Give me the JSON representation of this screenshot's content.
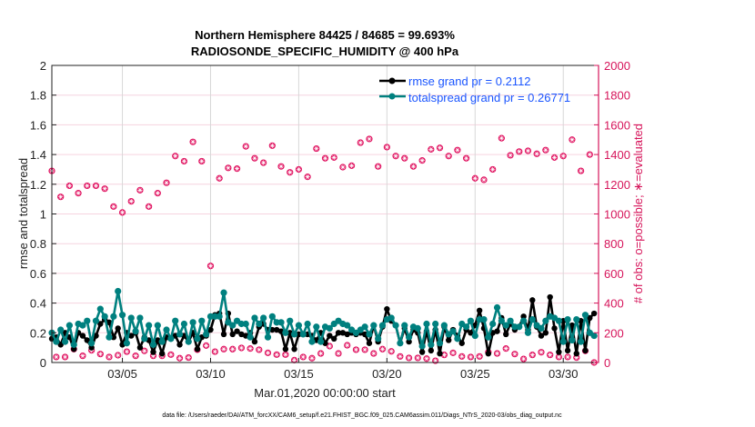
{
  "chart_data": {
    "type": "line",
    "title": [
      "Northern Hemisphere 84425 / 84685 = 99.693%",
      "RADIOSONDE_SPECIFIC_HUMIDITY @ 400 hPa"
    ],
    "xlabel": "Mar.01,2020 00:00:00 start",
    "ylabel": "rmse and totalspread",
    "ylabel_right": "# of obs: o=possible; ∗=evaluated",
    "footer": "data file: /Users/raeder/DAI/ATM_forcXX/CAM6_setup/f.e21.FHIST_BGC.f09_025.CAM6assim.011/Diags_NTrS_2020-03/obs_diag_output.nc",
    "x_range_days": [
      1,
      32
    ],
    "x_step_days": 0.25,
    "x_ticks": [
      {
        "day": 5,
        "label": "03/05"
      },
      {
        "day": 10,
        "label": "03/10"
      },
      {
        "day": 15,
        "label": "03/15"
      },
      {
        "day": 20,
        "label": "03/20"
      },
      {
        "day": 25,
        "label": "03/25"
      },
      {
        "day": 30,
        "label": "03/30"
      }
    ],
    "ylim": [
      0,
      2
    ],
    "y_ticks": [
      "0",
      "0.2",
      "0.4",
      "0.6",
      "0.8",
      "1",
      "1.2",
      "1.4",
      "1.6",
      "1.8",
      "2"
    ],
    "ylim_right": [
      0,
      2000
    ],
    "y_ticks_right": [
      "0",
      "200",
      "400",
      "600",
      "800",
      "1000",
      "1200",
      "1400",
      "1600",
      "1800",
      "2000"
    ],
    "grid": true,
    "legend_placement": "top-right",
    "colors": {
      "rmse": "#000000",
      "spread": "#00807f",
      "obs": "#e0115f",
      "right_axis": "#d6145a",
      "legend_text": "#1a55ff",
      "hgrid": "#f6d3df",
      "vgrid": "#d8d8d8"
    },
    "series": [
      {
        "name": "rmse grand pr = 0.2112",
        "key": "rmse",
        "values": [
          0.16,
          0.17,
          0.12,
          0.2,
          0.17,
          0.09,
          0.2,
          0.18,
          0.15,
          0.1,
          0.18,
          0.26,
          0.29,
          0.27,
          0.17,
          0.23,
          0.12,
          0.2,
          0.18,
          0.2,
          0.1,
          0.17,
          0.15,
          0.07,
          0.15,
          0.06,
          0.17,
          0.16,
          0.18,
          0.12,
          0.18,
          0.14,
          0.2,
          0.09,
          0.17,
          0.18,
          0.22,
          0.32,
          0.33,
          0.19,
          0.33,
          0.19,
          0.21,
          0.19,
          0.18,
          0.2,
          0.14,
          0.24,
          0.26,
          0.22,
          0.22,
          0.22,
          0.21,
          0.09,
          0.2,
          0.09,
          0.19,
          0.19,
          0.19,
          0.18,
          0.15,
          0.2,
          0.13,
          0.18,
          0.16,
          0.2,
          0.2,
          0.19,
          0.2,
          0.19,
          0.2,
          0.19,
          0.13,
          0.25,
          0.14,
          0.24,
          0.36,
          0.28,
          0.25,
          0.13,
          0.23,
          0.14,
          0.22,
          0.2,
          0.07,
          0.21,
          0.08,
          0.22,
          0.06,
          0.24,
          0.15,
          0.22,
          0.18,
          0.13,
          0.22,
          0.2,
          0.25,
          0.35,
          0.23,
          0.06,
          0.2,
          0.21,
          0.3,
          0.19,
          0.26,
          0.22,
          0.24,
          0.31,
          0.22,
          0.42,
          0.24,
          0.18,
          0.2,
          0.44,
          0.23,
          0.07,
          0.28,
          0.08,
          0.25,
          0.06,
          0.28,
          0.08,
          0.3,
          0.33
        ]
      },
      {
        "name": "totalspread grand pr = 0.26771",
        "key": "spread",
        "values": [
          0.2,
          0.14,
          0.22,
          0.14,
          0.25,
          0.12,
          0.26,
          0.25,
          0.28,
          0.13,
          0.28,
          0.36,
          0.31,
          0.17,
          0.31,
          0.48,
          0.32,
          0.13,
          0.3,
          0.21,
          0.3,
          0.16,
          0.25,
          0.12,
          0.25,
          0.14,
          0.22,
          0.16,
          0.28,
          0.19,
          0.26,
          0.14,
          0.27,
          0.16,
          0.28,
          0.19,
          0.31,
          0.31,
          0.31,
          0.47,
          0.27,
          0.25,
          0.28,
          0.26,
          0.26,
          0.17,
          0.3,
          0.26,
          0.3,
          0.17,
          0.31,
          0.27,
          0.27,
          0.2,
          0.28,
          0.19,
          0.25,
          0.19,
          0.26,
          0.14,
          0.24,
          0.14,
          0.24,
          0.23,
          0.26,
          0.28,
          0.26,
          0.25,
          0.22,
          0.2,
          0.22,
          0.24,
          0.19,
          0.25,
          0.16,
          0.25,
          0.29,
          0.3,
          0.25,
          0.13,
          0.25,
          0.17,
          0.24,
          0.23,
          0.11,
          0.26,
          0.12,
          0.26,
          0.13,
          0.25,
          0.19,
          0.21,
          0.16,
          0.26,
          0.24,
          0.28,
          0.18,
          0.29,
          0.29,
          0.17,
          0.26,
          0.37,
          0.28,
          0.25,
          0.28,
          0.24,
          0.24,
          0.28,
          0.2,
          0.29,
          0.25,
          0.23,
          0.28,
          0.31,
          0.3,
          0.28,
          0.14,
          0.29,
          0.15,
          0.29,
          0.14,
          0.32,
          0.2,
          0.18
        ]
      },
      {
        "name": "# of obs",
        "key": "obs",
        "axis": "right",
        "values_00z_12z": [
          1290,
          1115,
          1190,
          1140,
          1190,
          1190,
          1170,
          1050,
          1010,
          1085,
          1160,
          1050,
          1140,
          1210,
          1390,
          1355,
          1485,
          1355,
          650,
          1240,
          1310,
          1305,
          1455,
          1375,
          1345,
          1460,
          1320,
          1280,
          1300,
          1250,
          1440,
          1375,
          1380,
          1315,
          1325,
          1480,
          1505,
          1320,
          1450,
          1390,
          1375,
          1320,
          1360,
          1435,
          1445,
          1390,
          1430,
          1375,
          1240,
          1230,
          1300,
          1510,
          1395,
          1420,
          1425,
          1405,
          1430,
          1380,
          1390,
          1500,
          1290,
          1400
        ],
        "values_06z_18z": [
          37,
          37,
          90,
          45,
          82,
          57,
          37,
          49,
          73,
          45,
          78,
          45,
          45,
          53,
          29,
          33,
          86,
          114,
          73,
          90,
          90,
          98,
          94,
          86,
          65,
          53,
          53,
          16,
          37,
          29,
          61,
          110,
          61,
          116,
          86,
          86,
          61,
          90,
          75,
          41,
          31,
          31,
          26,
          12,
          51,
          65,
          41,
          37,
          41,
          69,
          61,
          94,
          57,
          24,
          51,
          69,
          51,
          37,
          37,
          33,
          78,
          0
        ]
      }
    ]
  }
}
